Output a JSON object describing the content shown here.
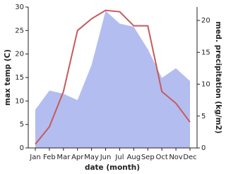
{
  "chart_data": {
    "type": "line-area",
    "x_label": "date (month)",
    "y_label": "max temp (C)",
    "y2_label": "med. precipitation (kg/m2)",
    "categories": [
      "Jan",
      "Feb",
      "Mar",
      "Apr",
      "May",
      "Jun",
      "Jul",
      "Aug",
      "Sep",
      "Oct",
      "Nov",
      "Dec"
    ],
    "series": [
      {
        "name": "med. precipitation (kg/m2)",
        "kind": "area",
        "axis": "y2",
        "color": "#b3bdf0",
        "values": [
          6,
          9,
          8.5,
          7.5,
          13,
          21.5,
          19.5,
          19,
          15.5,
          11,
          12.5,
          10.5
        ]
      },
      {
        "name": "max temp (C)",
        "kind": "line",
        "color": "#c85a5a",
        "values": [
          0.8,
          4.5,
          12,
          25,
          27.5,
          29.3,
          29,
          26,
          26,
          12,
          9.5,
          5.5
        ]
      }
    ],
    "ylim": [
      0,
      30
    ],
    "yticks": [
      0,
      5,
      10,
      15,
      20,
      25,
      30
    ],
    "y2lim": [
      0,
      22.1
    ],
    "y2ticks": [
      0,
      5,
      10,
      15,
      20
    ]
  }
}
